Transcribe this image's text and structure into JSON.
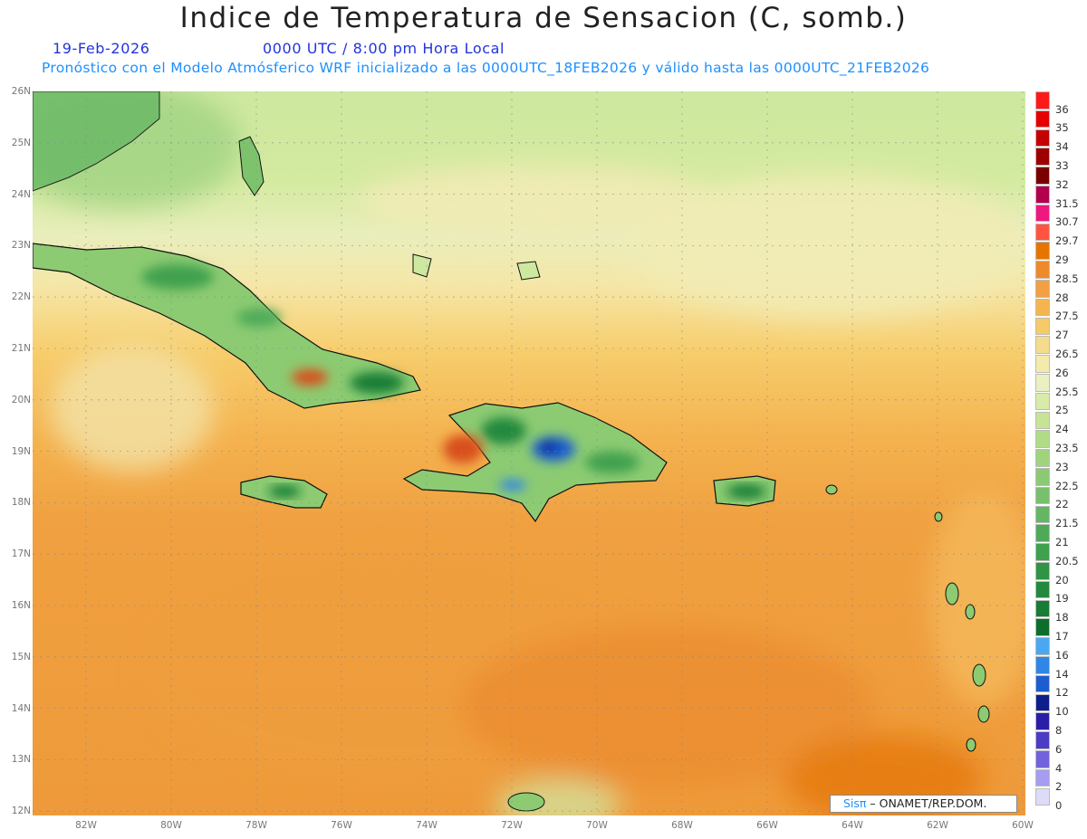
{
  "header": {
    "title": "Indice de Temperatura de Sensacion (C, somb.)",
    "date": "19-Feb-2026",
    "time": "0000 UTC / 8:00 pm Hora Local",
    "model_line": "Pronóstico con el Modelo Atmósferico WRF inicializado a las 0000UTC_18FEB2026 y válido hasta las  0000UTC_21FEB2026"
  },
  "map": {
    "lat_labels": [
      "26N",
      "25N",
      "24N",
      "23N",
      "22N",
      "21N",
      "20N",
      "19N",
      "18N",
      "17N",
      "16N",
      "15N",
      "14N",
      "13N",
      "12N"
    ],
    "lon_labels": [
      "82W",
      "80W",
      "78W",
      "76W",
      "74W",
      "72W",
      "70W",
      "68W",
      "66W",
      "64W",
      "62W",
      "60W"
    ],
    "credit_logo": "Sisπ",
    "credit_text": " – ONAMET/REP.DOM."
  },
  "legend": {
    "items": [
      {
        "label": "36",
        "color": "#ff1a1a"
      },
      {
        "label": "35",
        "color": "#e60000"
      },
      {
        "label": "34",
        "color": "#c40000"
      },
      {
        "label": "33",
        "color": "#9e0000"
      },
      {
        "label": "32",
        "color": "#7a0000"
      },
      {
        "label": "31.5",
        "color": "#b3004d"
      },
      {
        "label": "30.7",
        "color": "#ef1880"
      },
      {
        "label": "29.7",
        "color": "#ff5540"
      },
      {
        "label": "29",
        "color": "#e87400"
      },
      {
        "label": "28.5",
        "color": "#ef8a2a"
      },
      {
        "label": "28",
        "color": "#f2a042"
      },
      {
        "label": "27.5",
        "color": "#f5b54e"
      },
      {
        "label": "27",
        "color": "#f7ca68"
      },
      {
        "label": "26.5",
        "color": "#f5dc8c"
      },
      {
        "label": "26",
        "color": "#f4eaaa"
      },
      {
        "label": "25.5",
        "color": "#eaf0c2"
      },
      {
        "label": "25",
        "color": "#d8eba8"
      },
      {
        "label": "24",
        "color": "#c6e594"
      },
      {
        "label": "23.5",
        "color": "#b2db86"
      },
      {
        "label": "23",
        "color": "#9fd37d"
      },
      {
        "label": "22.5",
        "color": "#8cc974"
      },
      {
        "label": "22",
        "color": "#78c06c"
      },
      {
        "label": "21.5",
        "color": "#64b663"
      },
      {
        "label": "21",
        "color": "#4eaa58"
      },
      {
        "label": "20.5",
        "color": "#3fa04e"
      },
      {
        "label": "20",
        "color": "#2f9444"
      },
      {
        "label": "19",
        "color": "#23893c"
      },
      {
        "label": "18",
        "color": "#167d34"
      },
      {
        "label": "17",
        "color": "#0c6e2b"
      },
      {
        "label": "16",
        "color": "#4aa8f0"
      },
      {
        "label": "14",
        "color": "#2f86e6"
      },
      {
        "label": "12",
        "color": "#1c5ed0"
      },
      {
        "label": "10",
        "color": "#0e1e8c"
      },
      {
        "label": "8",
        "color": "#2a1ea8"
      },
      {
        "label": "6",
        "color": "#4b3cc6"
      },
      {
        "label": "4",
        "color": "#7262dc"
      },
      {
        "label": "2",
        "color": "#a69cf2"
      },
      {
        "label": "0",
        "color": "#dcdcf8"
      }
    ]
  }
}
